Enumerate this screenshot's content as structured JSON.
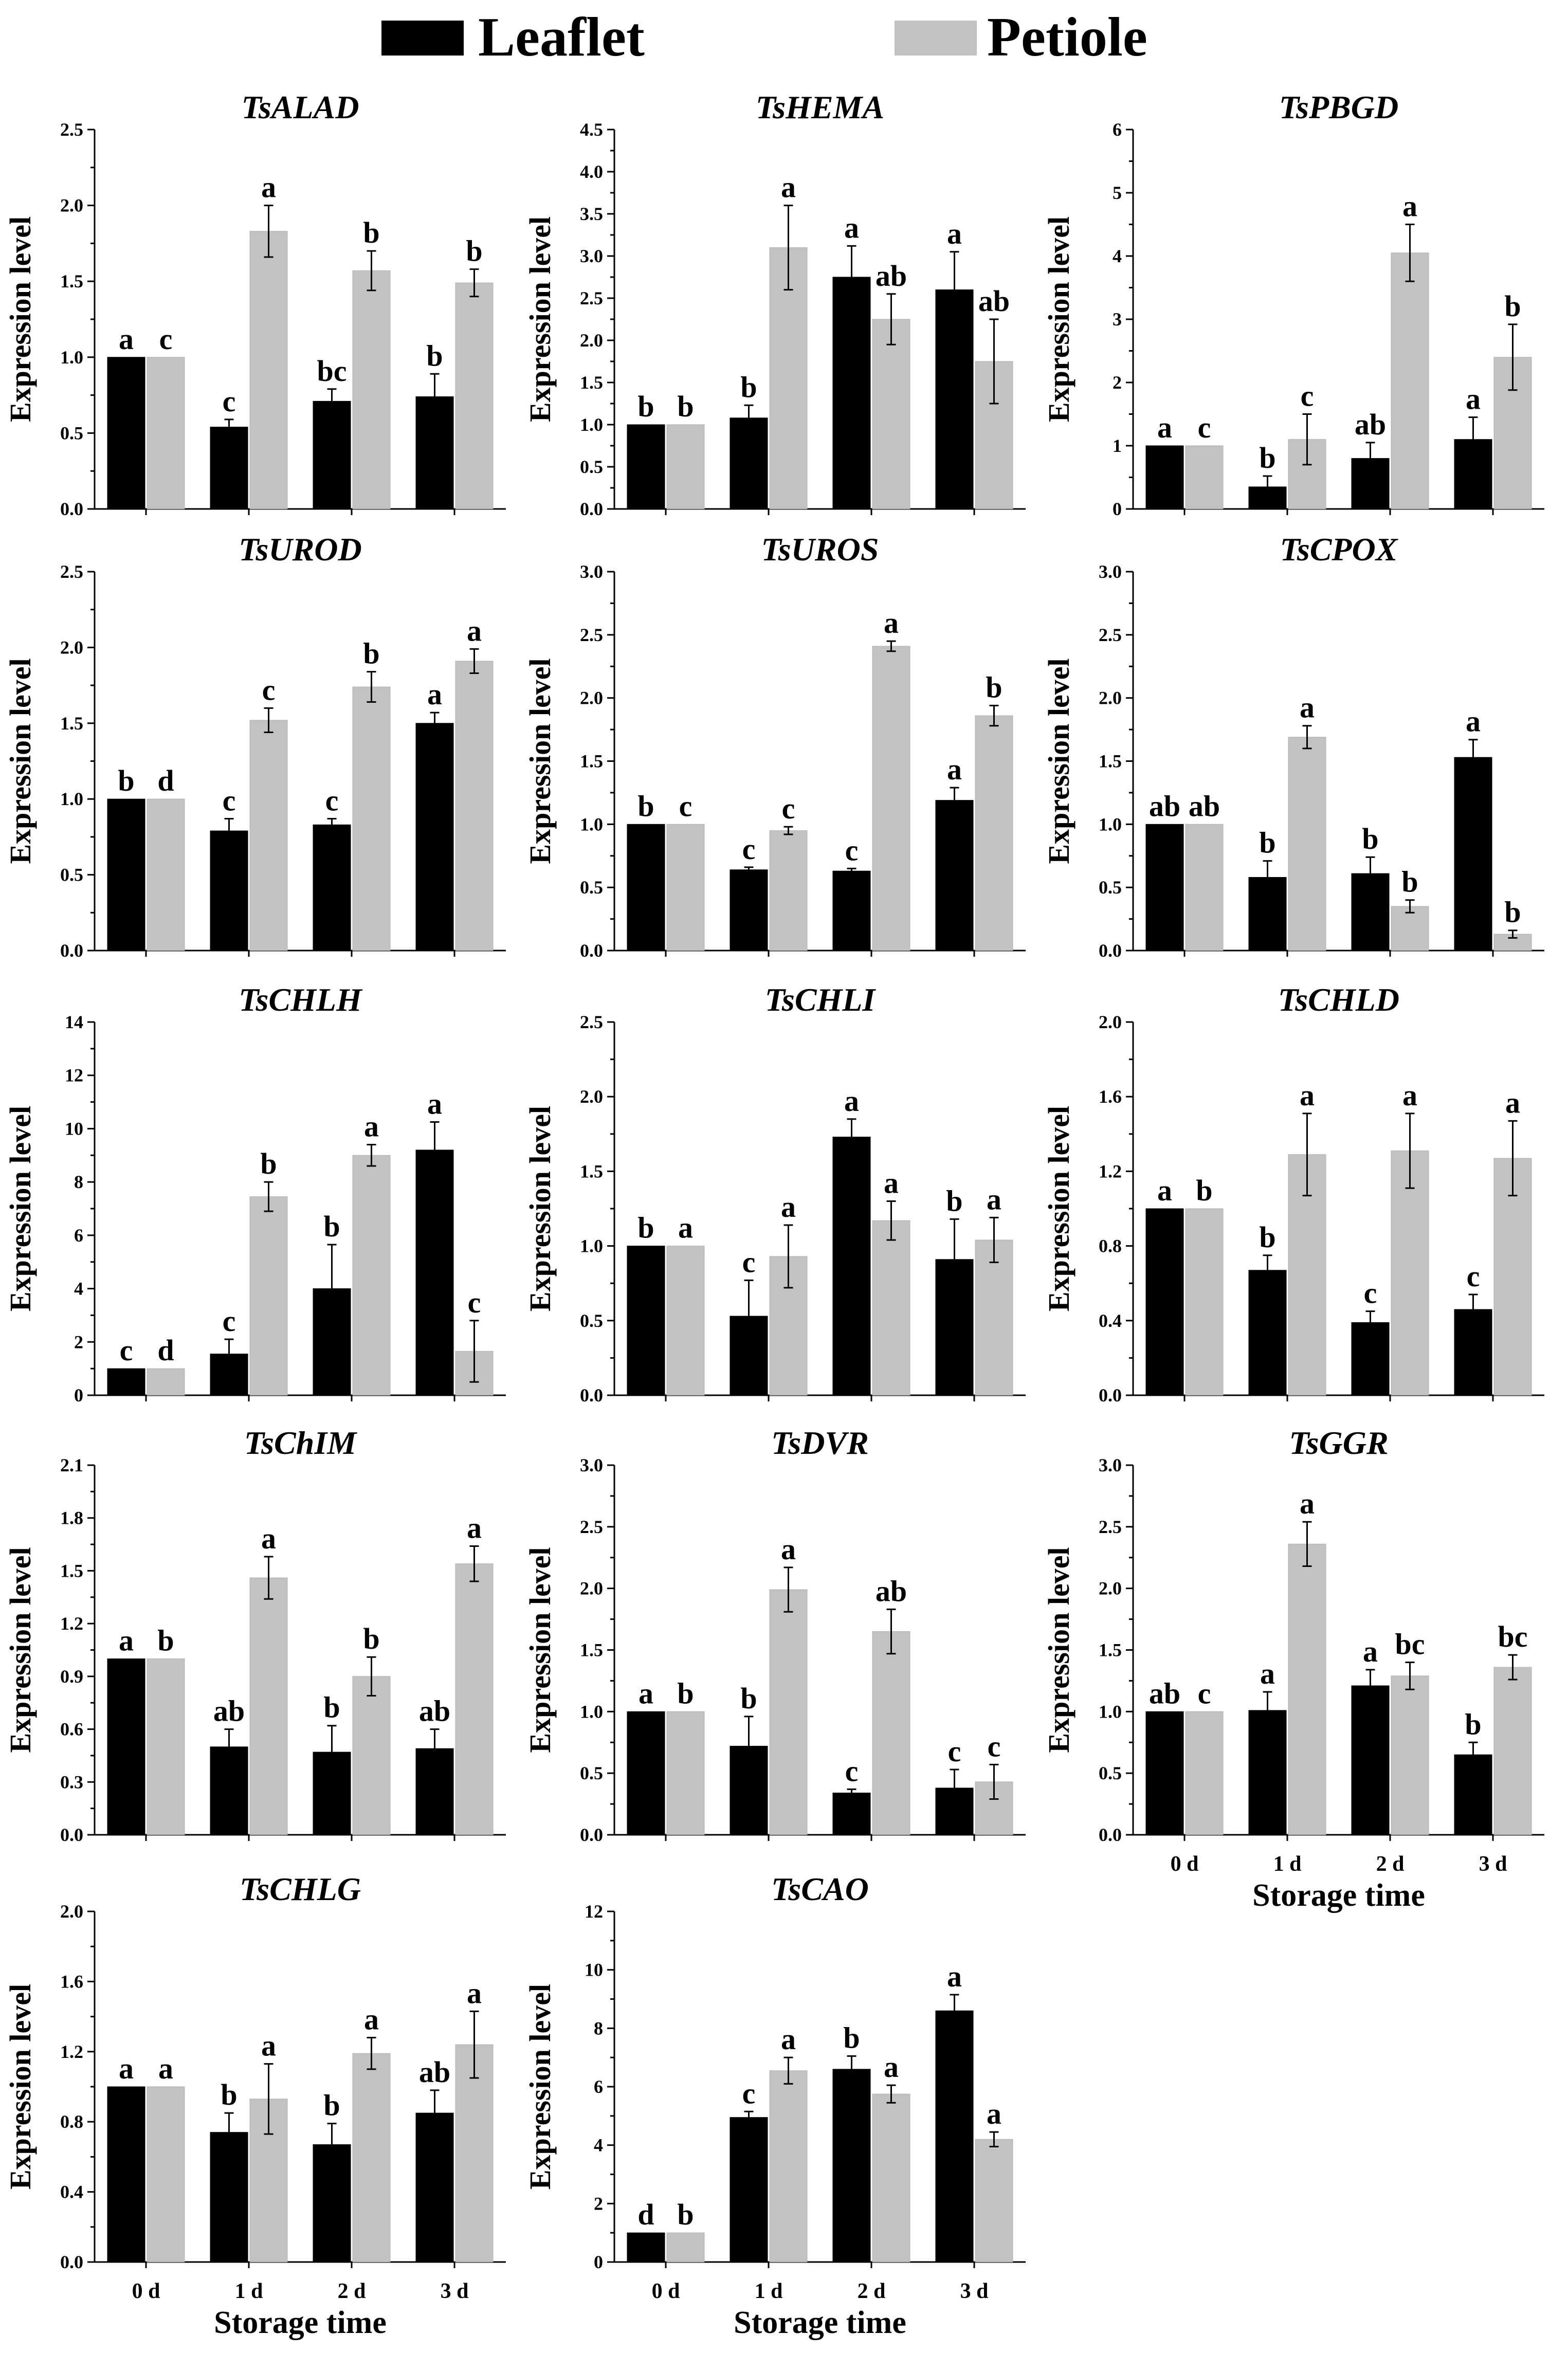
{
  "legend": {
    "leaflet_label": "Leaflet",
    "petiole_label": "Petiole"
  },
  "colors": {
    "leaflet": "#000000",
    "petiole": "#c2c2c2"
  },
  "common": {
    "ylabel": "Expression level",
    "xlabel": "Storage time",
    "categories": [
      "0 d",
      "1 d",
      "2 d",
      "3 d"
    ]
  },
  "chart_data": [
    {
      "type": "bar",
      "title": "TsALAD",
      "ylim": [
        0,
        2.5
      ],
      "yticks": [
        "0.0",
        "0.5",
        "1.0",
        "1.5",
        "2.0",
        "2.5"
      ],
      "categories": [
        "0 d",
        "1 d",
        "2 d",
        "3 d"
      ],
      "series": [
        {
          "name": "Leaflet",
          "values": [
            1.0,
            0.54,
            0.71,
            0.74
          ],
          "errors": [
            0,
            0.05,
            0.08,
            0.15
          ],
          "letters": [
            "a",
            "c",
            "bc",
            "b"
          ]
        },
        {
          "name": "Petiole",
          "values": [
            1.0,
            1.83,
            1.57,
            1.49
          ],
          "errors": [
            0,
            0.17,
            0.13,
            0.09
          ],
          "letters": [
            "c",
            "a",
            "b",
            "b"
          ]
        }
      ]
    },
    {
      "type": "bar",
      "title": "TsHEMA",
      "ylim": [
        0,
        4.5
      ],
      "yticks": [
        "0.0",
        "0.5",
        "1.0",
        "1.5",
        "2.0",
        "2.5",
        "3.0",
        "3.5",
        "4.0",
        "4.5"
      ],
      "categories": [
        "0 d",
        "1 d",
        "2 d",
        "3 d"
      ],
      "series": [
        {
          "name": "Leaflet",
          "values": [
            1.0,
            1.08,
            2.75,
            2.6
          ],
          "errors": [
            0,
            0.15,
            0.37,
            0.45
          ],
          "letters": [
            "b",
            "b",
            "a",
            "a"
          ]
        },
        {
          "name": "Petiole",
          "values": [
            1.0,
            3.1,
            2.25,
            1.75
          ],
          "errors": [
            0,
            0.5,
            0.3,
            0.5
          ],
          "letters": [
            "b",
            "a",
            "ab",
            "ab"
          ]
        }
      ]
    },
    {
      "type": "bar",
      "title": "TsPBGD",
      "ylim": [
        0,
        6
      ],
      "yticks": [
        "0",
        "1",
        "2",
        "3",
        "4",
        "5",
        "6"
      ],
      "categories": [
        "0 d",
        "1 d",
        "2 d",
        "3 d"
      ],
      "series": [
        {
          "name": "Leaflet",
          "values": [
            1.0,
            0.35,
            0.8,
            1.1
          ],
          "errors": [
            0,
            0.17,
            0.25,
            0.35
          ],
          "letters": [
            "a",
            "b",
            "ab",
            "a"
          ]
        },
        {
          "name": "Petiole",
          "values": [
            1.0,
            1.1,
            4.05,
            2.4
          ],
          "errors": [
            0,
            0.4,
            0.45,
            0.52
          ],
          "letters": [
            "c",
            "c",
            "a",
            "b"
          ]
        }
      ]
    },
    {
      "type": "bar",
      "title": "TsUROD",
      "ylim": [
        0,
        2.5
      ],
      "yticks": [
        "0.0",
        "0.5",
        "1.0",
        "1.5",
        "2.0",
        "2.5"
      ],
      "categories": [
        "0 d",
        "1 d",
        "2 d",
        "3 d"
      ],
      "series": [
        {
          "name": "Leaflet",
          "values": [
            1.0,
            0.79,
            0.83,
            1.5
          ],
          "errors": [
            0,
            0.08,
            0.04,
            0.07
          ],
          "letters": [
            "b",
            "c",
            "c",
            "a"
          ]
        },
        {
          "name": "Petiole",
          "values": [
            1.0,
            1.52,
            1.74,
            1.91
          ],
          "errors": [
            0,
            0.08,
            0.1,
            0.08
          ],
          "letters": [
            "d",
            "c",
            "b",
            "a"
          ]
        }
      ]
    },
    {
      "type": "bar",
      "title": "TsUROS",
      "ylim": [
        0,
        3.0
      ],
      "yticks": [
        "0.0",
        "0.5",
        "1.0",
        "1.5",
        "2.0",
        "2.5",
        "3.0"
      ],
      "categories": [
        "0 d",
        "1 d",
        "2 d",
        "3 d"
      ],
      "series": [
        {
          "name": "Leaflet",
          "values": [
            1.0,
            0.64,
            0.63,
            1.19
          ],
          "errors": [
            0,
            0.02,
            0.02,
            0.1
          ],
          "letters": [
            "b",
            "c",
            "c",
            "a"
          ]
        },
        {
          "name": "Petiole",
          "values": [
            1.0,
            0.95,
            2.41,
            1.86
          ],
          "errors": [
            0,
            0.03,
            0.04,
            0.08
          ],
          "letters": [
            "c",
            "c",
            "a",
            "b"
          ]
        }
      ]
    },
    {
      "type": "bar",
      "title": "TsCPOX",
      "ylim": [
        0,
        3.0
      ],
      "yticks": [
        "0.0",
        "0.5",
        "1.0",
        "1.5",
        "2.0",
        "2.5",
        "3.0"
      ],
      "categories": [
        "0 d",
        "1 d",
        "2 d",
        "3 d"
      ],
      "series": [
        {
          "name": "Leaflet",
          "values": [
            1.0,
            0.58,
            0.61,
            1.53
          ],
          "errors": [
            0,
            0.13,
            0.13,
            0.14
          ],
          "letters": [
            "ab",
            "b",
            "b",
            "a"
          ]
        },
        {
          "name": "Petiole",
          "values": [
            1.0,
            1.69,
            0.35,
            0.13
          ],
          "errors": [
            0,
            0.09,
            0.05,
            0.03
          ],
          "letters": [
            "ab",
            "a",
            "b",
            "b"
          ]
        }
      ]
    },
    {
      "type": "bar",
      "title": "TsCHLH",
      "ylim": [
        0,
        14
      ],
      "yticks": [
        "0",
        "2",
        "4",
        "6",
        "8",
        "10",
        "12",
        "14"
      ],
      "categories": [
        "0 d",
        "1 d",
        "2 d",
        "3 d"
      ],
      "series": [
        {
          "name": "Leaflet",
          "values": [
            1.0,
            1.55,
            4.0,
            9.2
          ],
          "errors": [
            0,
            0.55,
            1.65,
            1.05
          ],
          "letters": [
            "c",
            "c",
            "b",
            "a"
          ]
        },
        {
          "name": "Petiole",
          "values": [
            1.0,
            7.45,
            9.0,
            1.65
          ],
          "errors": [
            0,
            0.55,
            0.4,
            1.15
          ],
          "letters": [
            "d",
            "b",
            "a",
            "c"
          ]
        }
      ]
    },
    {
      "type": "bar",
      "title": "TsCHLI",
      "ylim": [
        0,
        2.5
      ],
      "yticks": [
        "0.0",
        "0.5",
        "1.0",
        "1.5",
        "2.0",
        "2.5"
      ],
      "categories": [
        "0 d",
        "1 d",
        "2 d",
        "3 d"
      ],
      "series": [
        {
          "name": "Leaflet",
          "values": [
            1.0,
            0.53,
            1.73,
            0.91
          ],
          "errors": [
            0,
            0.24,
            0.12,
            0.27
          ],
          "letters": [
            "b",
            "c",
            "a",
            "b"
          ]
        },
        {
          "name": "Petiole",
          "values": [
            1.0,
            0.93,
            1.17,
            1.04
          ],
          "errors": [
            0,
            0.21,
            0.13,
            0.15
          ],
          "letters": [
            "a",
            "a",
            "a",
            "a"
          ]
        }
      ]
    },
    {
      "type": "bar",
      "title": "TsCHLD",
      "ylim": [
        0,
        2.0
      ],
      "yticks": [
        "0.0",
        "0.4",
        "0.8",
        "1.2",
        "1.6",
        "2.0"
      ],
      "categories": [
        "0 d",
        "1 d",
        "2 d",
        "3 d"
      ],
      "series": [
        {
          "name": "Leaflet",
          "values": [
            1.0,
            0.67,
            0.39,
            0.46
          ],
          "errors": [
            0,
            0.08,
            0.06,
            0.08
          ],
          "letters": [
            "a",
            "b",
            "c",
            "c"
          ]
        },
        {
          "name": "Petiole",
          "values": [
            1.0,
            1.29,
            1.31,
            1.27
          ],
          "errors": [
            0,
            0.22,
            0.2,
            0.2
          ],
          "letters": [
            "b",
            "a",
            "a",
            "a"
          ]
        }
      ]
    },
    {
      "type": "bar",
      "title": "TsChIM",
      "ylim": [
        0,
        2.1
      ],
      "yticks": [
        "0.0",
        "0.3",
        "0.6",
        "0.9",
        "1.2",
        "1.5",
        "1.8",
        "2.1"
      ],
      "categories": [
        "0 d",
        "1 d",
        "2 d",
        "3 d"
      ],
      "series": [
        {
          "name": "Leaflet",
          "values": [
            1.0,
            0.5,
            0.47,
            0.49
          ],
          "errors": [
            0,
            0.1,
            0.15,
            0.11
          ],
          "letters": [
            "a",
            "ab",
            "b",
            "ab"
          ]
        },
        {
          "name": "Petiole",
          "values": [
            1.0,
            1.46,
            0.9,
            1.54
          ],
          "errors": [
            0,
            0.12,
            0.11,
            0.1
          ],
          "letters": [
            "b",
            "a",
            "b",
            "a"
          ]
        }
      ]
    },
    {
      "type": "bar",
      "title": "TsDVR",
      "ylim": [
        0,
        3.0
      ],
      "yticks": [
        "0.0",
        "0.5",
        "1.0",
        "1.5",
        "2.0",
        "2.5",
        "3.0"
      ],
      "categories": [
        "0 d",
        "1 d",
        "2 d",
        "3 d"
      ],
      "series": [
        {
          "name": "Leaflet",
          "values": [
            1.0,
            0.72,
            0.34,
            0.38
          ],
          "errors": [
            0,
            0.24,
            0.03,
            0.15
          ],
          "letters": [
            "a",
            "b",
            "c",
            "c"
          ]
        },
        {
          "name": "Petiole",
          "values": [
            1.0,
            1.99,
            1.65,
            0.43
          ],
          "errors": [
            0,
            0.18,
            0.18,
            0.14
          ],
          "letters": [
            "b",
            "a",
            "ab",
            "c"
          ]
        }
      ]
    },
    {
      "type": "bar",
      "title": "TsGGR",
      "ylim": [
        0,
        3.0
      ],
      "yticks": [
        "0.0",
        "0.5",
        "1.0",
        "1.5",
        "2.0",
        "2.5",
        "3.0"
      ],
      "categories": [
        "0 d",
        "1 d",
        "2 d",
        "3 d"
      ],
      "series": [
        {
          "name": "Leaflet",
          "values": [
            1.0,
            1.01,
            1.21,
            0.65
          ],
          "errors": [
            0,
            0.15,
            0.13,
            0.1
          ],
          "letters": [
            "ab",
            "a",
            "a",
            "b"
          ]
        },
        {
          "name": "Petiole",
          "values": [
            1.0,
            2.36,
            1.29,
            1.36
          ],
          "errors": [
            0,
            0.18,
            0.11,
            0.1
          ],
          "letters": [
            "c",
            "a",
            "bc",
            "bc"
          ]
        }
      ]
    },
    {
      "type": "bar",
      "title": "TsCHLG",
      "ylim": [
        0,
        2.0
      ],
      "yticks": [
        "0.0",
        "0.4",
        "0.8",
        "1.2",
        "1.6",
        "2.0"
      ],
      "categories": [
        "0 d",
        "1 d",
        "2 d",
        "3 d"
      ],
      "series": [
        {
          "name": "Leaflet",
          "values": [
            1.0,
            0.74,
            0.67,
            0.85
          ],
          "errors": [
            0,
            0.11,
            0.12,
            0.13
          ],
          "letters": [
            "a",
            "b",
            "b",
            "ab"
          ]
        },
        {
          "name": "Petiole",
          "values": [
            1.0,
            0.93,
            1.19,
            1.24
          ],
          "errors": [
            0,
            0.2,
            0.09,
            0.19
          ],
          "letters": [
            "a",
            "a",
            "a",
            "a"
          ]
        }
      ]
    },
    {
      "type": "bar",
      "title": "TsCAO",
      "ylim": [
        0,
        12
      ],
      "yticks": [
        "0",
        "2",
        "4",
        "6",
        "8",
        "10",
        "12"
      ],
      "categories": [
        "0 d",
        "1 d",
        "2 d",
        "3 d"
      ],
      "series": [
        {
          "name": "Leaflet",
          "values": [
            1.0,
            4.95,
            6.6,
            8.6
          ],
          "errors": [
            0,
            0.2,
            0.45,
            0.55
          ],
          "letters": [
            "d",
            "c",
            "b",
            "a"
          ]
        },
        {
          "name": "Petiole",
          "values": [
            1.0,
            6.55,
            5.75,
            4.2
          ],
          "errors": [
            0,
            0.45,
            0.3,
            0.25
          ],
          "letters": [
            "b",
            "a",
            "a",
            "a"
          ]
        }
      ]
    }
  ]
}
